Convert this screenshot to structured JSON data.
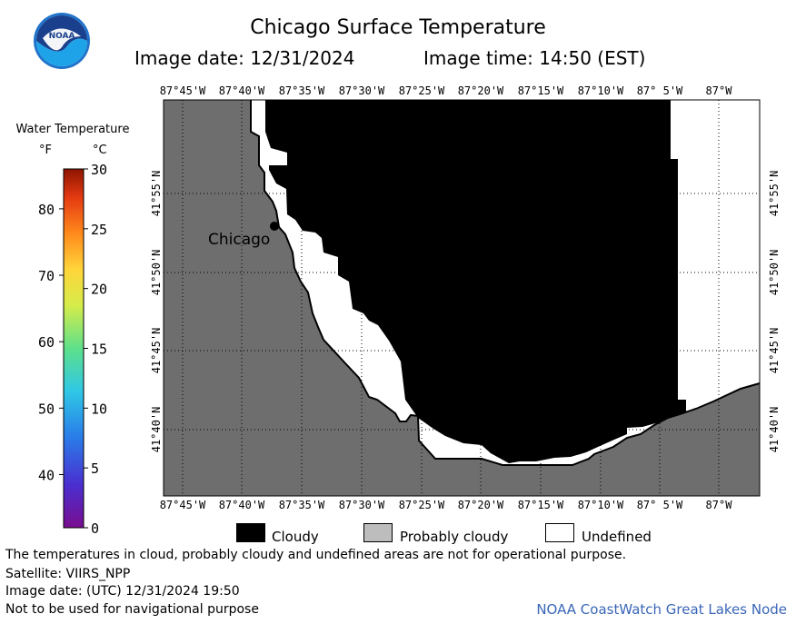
{
  "header": {
    "title": "Chicago Surface Temperature",
    "image_date": "Image date: 12/31/2024",
    "image_time": "Image time: 14:50 (EST)",
    "logo_text": "NOAA"
  },
  "colorbar": {
    "title": "Water Temperature",
    "unit_f": "°F",
    "unit_c": "°C",
    "f_ticks": [
      "40",
      "50",
      "60",
      "70",
      "80"
    ],
    "c_ticks": [
      "0",
      "5",
      "10",
      "15",
      "20",
      "25",
      "30"
    ],
    "gradient_colors": [
      "#7a0d8f",
      "#4a2fd0",
      "#2a7be8",
      "#2fc7e6",
      "#5ee08a",
      "#d6ec4a",
      "#ffd53a",
      "#ff8a1c",
      "#e43a12",
      "#8e1400"
    ]
  },
  "map": {
    "city_label": "Chicago",
    "lon_labels": [
      "87°45'W",
      "87°40'W",
      "87°35'W",
      "87°30'W",
      "87°25'W",
      "87°20'W",
      "87°15'W",
      "87°10'W",
      "87° 5'W",
      "87°W"
    ],
    "lat_labels": [
      "41°55'N",
      "41°50'N",
      "41°45'N",
      "41°40'N"
    ],
    "colors": {
      "land": "#6e6e6e",
      "cloudy": "#000000",
      "undefined": "#ffffff",
      "probably_cloudy": "#bdbdbd"
    }
  },
  "legend": {
    "items": [
      {
        "label": "Cloudy",
        "color": "#000000"
      },
      {
        "label": "Probably cloudy",
        "color": "#bdbdbd"
      },
      {
        "label": "Undefined",
        "color": "#ffffff"
      }
    ]
  },
  "footer": {
    "note": "The temperatures in cloud, probably cloudy and undefined areas are not for operational purpose.",
    "satellite": "Satellite: VIIRS_NPP",
    "utc_date": "Image date: (UTC) 12/31/2024  19:50",
    "nav_warning": "Not to be used for navigational purpose",
    "credit": "NOAA CoastWatch Great Lakes Node"
  }
}
